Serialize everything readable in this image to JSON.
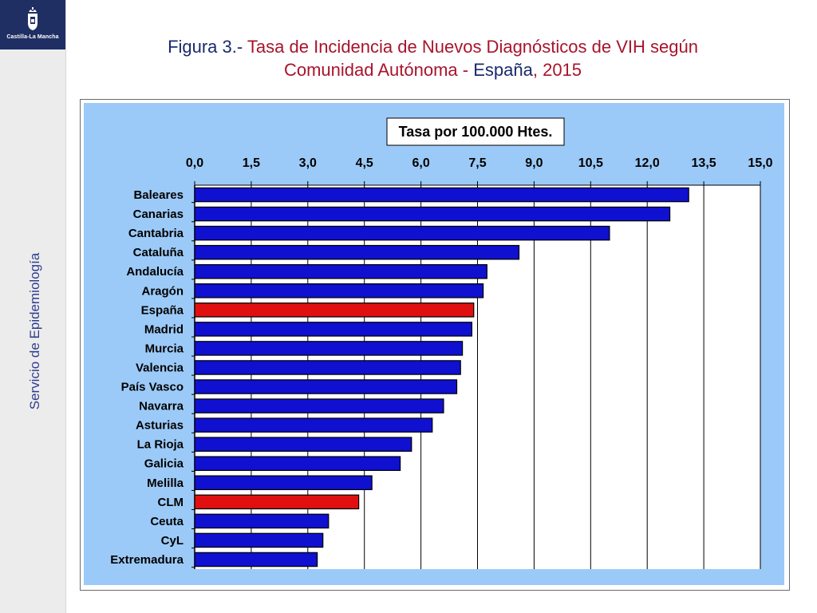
{
  "logo": {
    "text": "Castilla-La Mancha"
  },
  "sidebar": {
    "label": "Servicio de Epidemiología"
  },
  "title": {
    "line1_prefix": "Figura 3.- ",
    "line1_main": "Tasa de Incidencia de Nuevos Diagnósticos de VIH según",
    "line2_main": "Comunidad Autónoma - ",
    "line2_highlight": "España",
    "line2_suffix": ", 2015"
  },
  "colors": {
    "plot_background": "#9ccaf8",
    "bar_default": "#1010d0",
    "bar_highlight": "#e01010",
    "title_navy": "#1a2a6c",
    "title_red": "#a8142c"
  },
  "chart_data": {
    "type": "bar",
    "orientation": "horizontal",
    "title": "Tasa por 100.000 Htes.",
    "xlabel": "",
    "ylabel": "",
    "xlim": [
      0,
      15
    ],
    "xticks": [
      "0,0",
      "1,5",
      "3,0",
      "4,5",
      "6,0",
      "7,5",
      "9,0",
      "10,5",
      "12,0",
      "13,5",
      "15,0"
    ],
    "axis_position": "top",
    "grid": true,
    "categories": [
      "Baleares",
      "Canarias",
      "Cantabria",
      "Cataluña",
      "Andalucía",
      "Aragón",
      "España",
      "Madrid",
      "Murcia",
      "Valencia",
      "País Vasco",
      "Navarra",
      "Asturias",
      "La Rioja",
      "Galicia",
      "Melilla",
      "CLM",
      "Ceuta",
      "CyL",
      "Extremadura"
    ],
    "values": [
      13.1,
      12.6,
      11.0,
      8.6,
      7.75,
      7.65,
      7.4,
      7.35,
      7.1,
      7.05,
      6.95,
      6.6,
      6.3,
      5.75,
      5.45,
      4.7,
      4.35,
      3.55,
      3.4,
      3.25
    ],
    "highlighted": [
      "España",
      "CLM"
    ]
  }
}
